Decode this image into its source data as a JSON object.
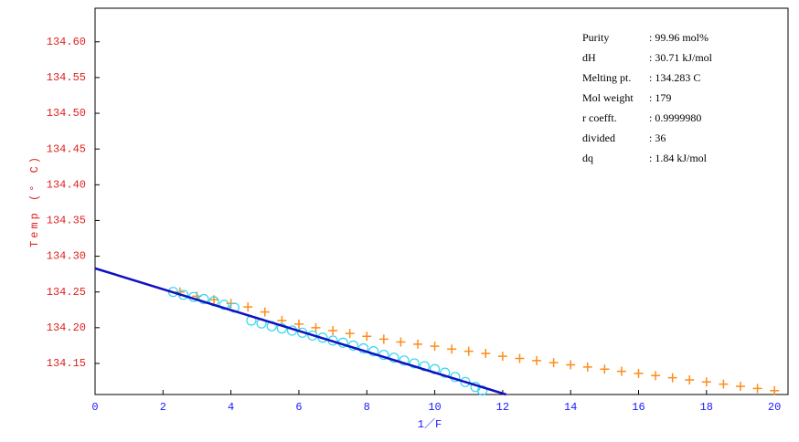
{
  "chart_data": {
    "type": "scatter",
    "x_label": "1／F",
    "y_label": "Temp (° C)",
    "xlim": [
      0,
      20.4
    ],
    "ylim": [
      134.1065,
      134.647
    ],
    "xticks": [
      0,
      2,
      4,
      6,
      8,
      10,
      12,
      14,
      16,
      18,
      20
    ],
    "yticks": [
      134.15,
      {
        "value": 134.2,
        "label": "134.20"
      },
      134.25,
      {
        "value": 134.3,
        "label": "134.30"
      },
      134.35,
      {
        "value": 134.4,
        "label": "134.40"
      },
      134.45,
      {
        "value": 134.5,
        "label": "134.50"
      },
      134.55,
      {
        "value": 134.6,
        "label": "134.60"
      }
    ],
    "series": [
      {
        "marker": "plus",
        "color": "#ff8c1a",
        "x": [
          2.5,
          3,
          3.5,
          4,
          4.5,
          5,
          5.5,
          6,
          6.5,
          7,
          7.5,
          8,
          8.5,
          9,
          9.5,
          10,
          10.5,
          11,
          11.5,
          12,
          12.5,
          13,
          13.5,
          14,
          14.5,
          15,
          15.5,
          16,
          16.5,
          17,
          17.5,
          18,
          18.5,
          19,
          19.5,
          20
        ],
        "values": [
          134.25,
          134.244,
          134.239,
          134.234,
          134.229,
          134.222,
          134.21,
          134.205,
          134.2,
          134.196,
          134.192,
          134.188,
          134.184,
          134.18,
          134.177,
          134.174,
          134.17,
          134.167,
          134.164,
          134.16,
          134.157,
          134.154,
          134.151,
          134.148,
          134.145,
          134.142,
          134.139,
          134.136,
          134.133,
          134.13,
          134.127,
          134.124,
          134.121,
          134.118,
          134.115,
          134.112
        ]
      },
      {
        "marker": "circle",
        "color": "#33d6f0",
        "x": [
          2.3,
          2.6,
          2.9,
          3.2,
          3.5,
          3.8,
          4.1,
          4.6,
          4.9,
          5.2,
          5.5,
          5.8,
          6.1,
          6.4,
          6.7,
          7.0,
          7.3,
          7.6,
          7.9,
          8.2,
          8.5,
          8.8,
          9.1,
          9.4,
          9.7,
          10.0,
          10.3,
          10.6,
          10.9,
          11.2,
          11.4
        ],
        "values": [
          134.25,
          134.246,
          134.243,
          134.24,
          134.237,
          134.232,
          134.228,
          134.21,
          134.206,
          134.202,
          134.199,
          134.196,
          134.193,
          134.189,
          134.186,
          134.182,
          134.179,
          134.175,
          134.171,
          134.167,
          134.162,
          134.158,
          134.154,
          134.15,
          134.146,
          134.142,
          134.137,
          134.131,
          134.124,
          134.117,
          134.112
        ]
      },
      {
        "marker": "line",
        "color": "#1010c0",
        "x": [
          0,
          12.1
        ],
        "values": [
          134.283,
          134.106
        ]
      }
    ],
    "annotations": [
      {
        "label": "Purity",
        "value": ": 99.96 mol%"
      },
      {
        "label": "dH",
        "value": ": 30.71 kJ/mol"
      },
      {
        "label": "Melting pt.",
        "value": ": 134.283 C"
      },
      {
        "label": "Mol weight",
        "value": ": 179"
      },
      {
        "label": "r coefft.",
        "value": ": 0.9999980"
      },
      {
        "label": "divided",
        "value": ": 36"
      },
      {
        "label": "dq",
        "value": ": 1.84 kJ/mol"
      }
    ]
  }
}
